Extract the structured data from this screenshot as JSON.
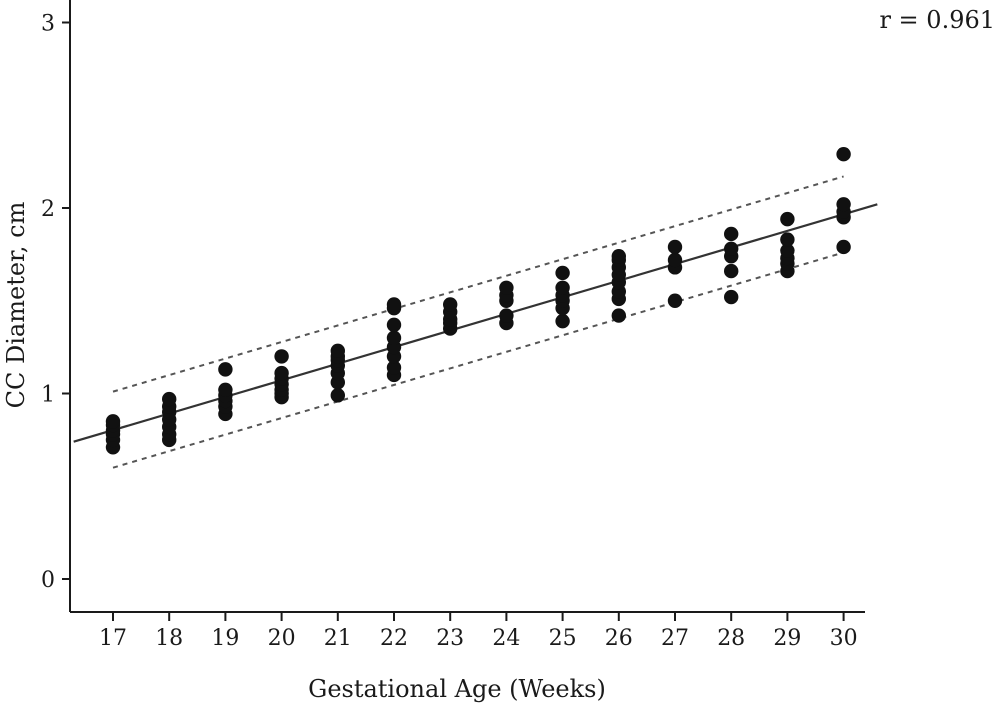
{
  "chart_data": {
    "type": "scatter",
    "title": "",
    "xlabel": "Gestational Age (Weeks)",
    "ylabel": "CC Diameter, cm",
    "xlim": [
      16.3,
      30.6
    ],
    "ylim": [
      -0.18,
      3.05
    ],
    "xticks": [
      17,
      18,
      19,
      20,
      21,
      22,
      23,
      24,
      25,
      26,
      27,
      28,
      29,
      30
    ],
    "yticks": [
      0,
      1,
      2,
      3
    ],
    "grid": false,
    "annotation": "r = 0.961",
    "series": [
      {
        "role": "observations",
        "points": [
          [
            17,
            0.71
          ],
          [
            17,
            0.75
          ],
          [
            17,
            0.78
          ],
          [
            17,
            0.8
          ],
          [
            17,
            0.83
          ],
          [
            17,
            0.85
          ],
          [
            18,
            0.75
          ],
          [
            18,
            0.78
          ],
          [
            18,
            0.82
          ],
          [
            18,
            0.86
          ],
          [
            18,
            0.9
          ],
          [
            18,
            0.93
          ],
          [
            18,
            0.97
          ],
          [
            19,
            0.89
          ],
          [
            19,
            0.93
          ],
          [
            19,
            0.96
          ],
          [
            19,
            0.99
          ],
          [
            19,
            1.02
          ],
          [
            19,
            1.13
          ],
          [
            20,
            0.98
          ],
          [
            20,
            1.0
          ],
          [
            20,
            1.02
          ],
          [
            20,
            1.05
          ],
          [
            20,
            1.08
          ],
          [
            20,
            1.11
          ],
          [
            20,
            1.2
          ],
          [
            21,
            0.99
          ],
          [
            21,
            1.06
          ],
          [
            21,
            1.11
          ],
          [
            21,
            1.15
          ],
          [
            21,
            1.18
          ],
          [
            21,
            1.2
          ],
          [
            21,
            1.23
          ],
          [
            22,
            1.1
          ],
          [
            22,
            1.14
          ],
          [
            22,
            1.2
          ],
          [
            22,
            1.25
          ],
          [
            22,
            1.3
          ],
          [
            22,
            1.37
          ],
          [
            22,
            1.46
          ],
          [
            22,
            1.48
          ],
          [
            23,
            1.35
          ],
          [
            23,
            1.38
          ],
          [
            23,
            1.4
          ],
          [
            23,
            1.44
          ],
          [
            23,
            1.48
          ],
          [
            24,
            1.38
          ],
          [
            24,
            1.42
          ],
          [
            24,
            1.5
          ],
          [
            24,
            1.53
          ],
          [
            24,
            1.57
          ],
          [
            25,
            1.39
          ],
          [
            25,
            1.46
          ],
          [
            25,
            1.5
          ],
          [
            25,
            1.53
          ],
          [
            25,
            1.57
          ],
          [
            25,
            1.65
          ],
          [
            26,
            1.42
          ],
          [
            26,
            1.51
          ],
          [
            26,
            1.55
          ],
          [
            26,
            1.6
          ],
          [
            26,
            1.64
          ],
          [
            26,
            1.68
          ],
          [
            26,
            1.72
          ],
          [
            26,
            1.74
          ],
          [
            27,
            1.5
          ],
          [
            27,
            1.68
          ],
          [
            27,
            1.72
          ],
          [
            27,
            1.79
          ],
          [
            28,
            1.52
          ],
          [
            28,
            1.66
          ],
          [
            28,
            1.74
          ],
          [
            28,
            1.78
          ],
          [
            28,
            1.86
          ],
          [
            29,
            1.66
          ],
          [
            29,
            1.7
          ],
          [
            29,
            1.73
          ],
          [
            29,
            1.77
          ],
          [
            29,
            1.83
          ],
          [
            29,
            1.94
          ],
          [
            30,
            1.79
          ],
          [
            30,
            1.95
          ],
          [
            30,
            1.98
          ],
          [
            30,
            2.02
          ],
          [
            30,
            2.29
          ]
        ]
      },
      {
        "role": "regression line",
        "style": "solid",
        "points": [
          [
            16.3,
            0.74
          ],
          [
            30.6,
            2.02
          ]
        ]
      },
      {
        "role": "upper bound",
        "style": "dashed",
        "points": [
          [
            17,
            1.01
          ],
          [
            30,
            2.17
          ]
        ]
      },
      {
        "role": "lower bound",
        "style": "dashed",
        "points": [
          [
            17,
            0.6
          ],
          [
            30,
            1.76
          ]
        ]
      }
    ]
  }
}
